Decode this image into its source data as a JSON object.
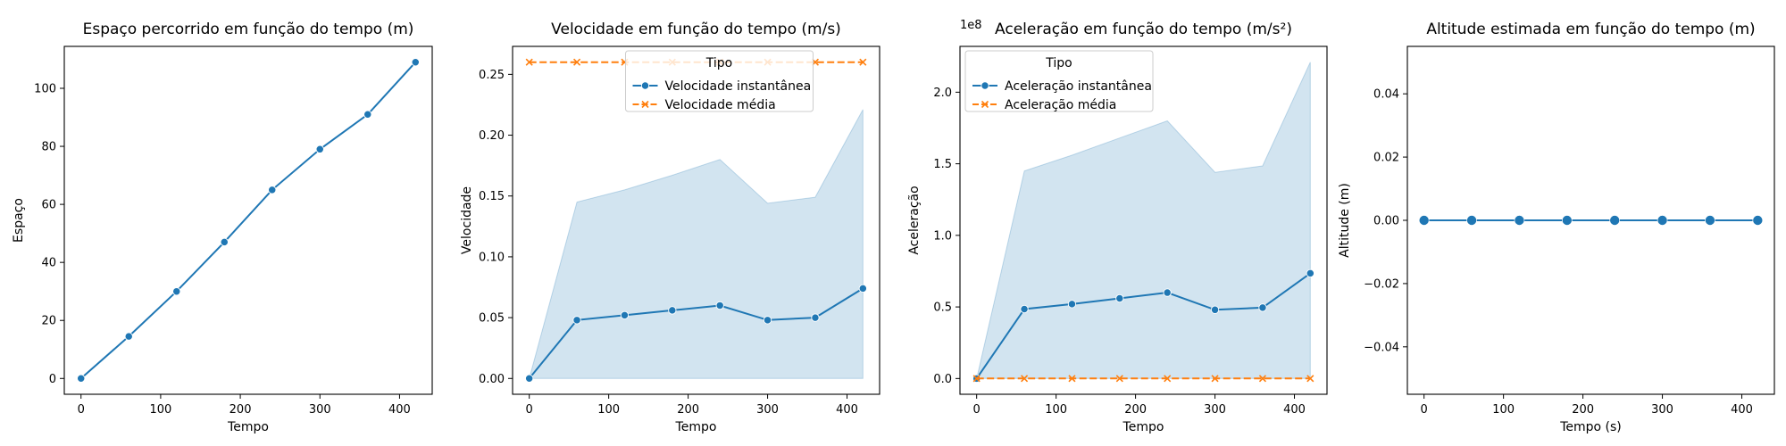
{
  "chart_data": [
    {
      "type": "line",
      "title": "Espaço percorrido em função do tempo (m)",
      "xlabel": "Tempo",
      "ylabel": "Espaço",
      "x": [
        0,
        60,
        120,
        180,
        240,
        300,
        360,
        420
      ],
      "series": [
        {
          "values": [
            0,
            14.5,
            30,
            47,
            65,
            79,
            91,
            109
          ],
          "color": "#1f77b4",
          "marker": "circle"
        }
      ],
      "xlim": [
        -21,
        441
      ],
      "ylim": [
        -5.45,
        114.45
      ],
      "xticks": [
        0,
        100,
        200,
        300,
        400
      ],
      "yticks": [
        0,
        20,
        40,
        60,
        80,
        100
      ],
      "ytick_labels": [
        "0",
        "20",
        "40",
        "60",
        "80",
        "100"
      ],
      "grid": false
    },
    {
      "type": "line",
      "title": "Velocidade em função do tempo (m/s)",
      "xlabel": "Tempo",
      "ylabel": "Velocidade",
      "x": [
        0,
        60,
        120,
        180,
        240,
        300,
        360,
        420
      ],
      "series": [
        {
          "name": "Velocidade instantânea",
          "values": [
            0,
            0.048,
            0.052,
            0.056,
            0.06,
            0.048,
            0.05,
            0.074
          ],
          "color": "#1f77b4",
          "marker": "circle",
          "dash": "solid"
        },
        {
          "name": "Velocidade média",
          "values": [
            0.26,
            0.26,
            0.26,
            0.26,
            0.26,
            0.26,
            0.26,
            0.26
          ],
          "color": "#ff7f0e",
          "marker": "x",
          "dash": "dashed"
        }
      ],
      "band": {
        "lower": [
          0,
          0,
          0,
          0,
          0,
          0,
          0,
          0
        ],
        "upper": [
          0,
          0.145,
          0.155,
          0.167,
          0.18,
          0.144,
          0.149,
          0.221
        ],
        "color": "#1f77b4"
      },
      "legend": {
        "title": "Tipo",
        "placement": "top-center"
      },
      "xlim": [
        -21,
        441
      ],
      "ylim": [
        -0.013,
        0.273
      ],
      "xticks": [
        0,
        100,
        200,
        300,
        400
      ],
      "yticks": [
        0,
        0.05,
        0.1,
        0.15,
        0.2,
        0.25
      ],
      "ytick_labels": [
        "0.00",
        "0.05",
        "0.10",
        "0.15",
        "0.20",
        "0.25"
      ],
      "grid": false
    },
    {
      "type": "line",
      "title": "Aceleração em função do tempo (m/s²)",
      "xlabel": "Tempo",
      "ylabel": "Aceleração",
      "y_offset_label": "1e8",
      "x": [
        0,
        60,
        120,
        180,
        240,
        300,
        360,
        420
      ],
      "series": [
        {
          "name": "Aceleração instantânea",
          "values": [
            0,
            0.485,
            0.52,
            0.56,
            0.6,
            0.48,
            0.495,
            0.735
          ],
          "color": "#1f77b4",
          "marker": "circle",
          "dash": "solid"
        },
        {
          "name": "Aceleração média",
          "values": [
            0,
            0,
            0,
            0,
            0,
            0,
            0,
            0
          ],
          "color": "#ff7f0e",
          "marker": "x",
          "dash": "dashed"
        }
      ],
      "band": {
        "lower": [
          0,
          0,
          0,
          0,
          0,
          0,
          0,
          0
        ],
        "upper": [
          0,
          1.45,
          1.56,
          1.68,
          1.8,
          1.44,
          1.485,
          2.21
        ],
        "color": "#1f77b4"
      },
      "legend": {
        "title": "Tipo",
        "placement": "top-left"
      },
      "xlim": [
        -21,
        441
      ],
      "ylim": [
        -0.11,
        2.32
      ],
      "xticks": [
        0,
        100,
        200,
        300,
        400
      ],
      "yticks": [
        0,
        0.5,
        1,
        1.5,
        2
      ],
      "ytick_labels": [
        "0.0",
        "0.5",
        "1.0",
        "1.5",
        "2.0"
      ],
      "grid": false
    },
    {
      "type": "line",
      "title": "Altitude estimada em função do tempo (m)",
      "xlabel": "Tempo (s)",
      "ylabel": "Altitude (m)",
      "x": [
        0,
        60,
        120,
        180,
        240,
        300,
        360,
        420
      ],
      "series": [
        {
          "values": [
            0,
            0,
            0,
            0,
            0,
            0,
            0,
            0
          ],
          "color": "#1f77b4",
          "marker": "circle"
        }
      ],
      "xlim": [
        -21,
        441
      ],
      "ylim": [
        -0.055,
        0.055
      ],
      "xticks": [
        0,
        100,
        200,
        300,
        400
      ],
      "yticks": [
        -0.04,
        -0.02,
        0,
        0.02,
        0.04
      ],
      "ytick_labels": [
        "−0.04",
        "−0.02",
        "0.00",
        "0.02",
        "0.04"
      ],
      "grid": false
    }
  ]
}
